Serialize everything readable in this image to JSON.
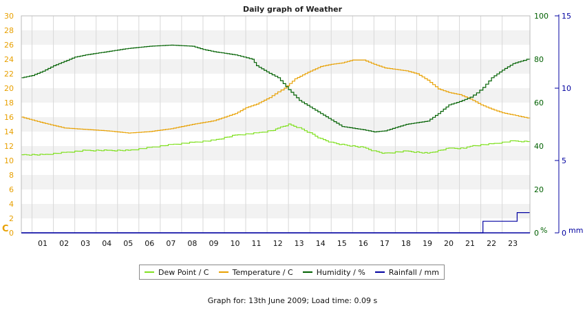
{
  "chart_data": {
    "type": "line",
    "title": "Daily graph of Weather",
    "x_tick_labels": [
      "01",
      "02",
      "03",
      "04",
      "05",
      "06",
      "07",
      "08",
      "09",
      "10",
      "11",
      "12",
      "13",
      "14",
      "15",
      "16",
      "17",
      "18",
      "19",
      "20",
      "21",
      "22",
      "23"
    ],
    "x_range_hours": [
      0,
      23.8
    ],
    "y_left": {
      "label": "C",
      "min": 0,
      "max": 30,
      "ticks": [
        0,
        2,
        4,
        6,
        8,
        10,
        12,
        14,
        16,
        18,
        20,
        22,
        24,
        26,
        28,
        30
      ],
      "color": "#e8a000"
    },
    "y_right_humidity": {
      "label": "%",
      "min": 0,
      "max": 100,
      "ticks": [
        0,
        20,
        40,
        60,
        80,
        100
      ],
      "color": "#006000"
    },
    "y_right_rain": {
      "label": "mm",
      "min": 0,
      "max": 15,
      "ticks": [
        0,
        5,
        10,
        15
      ],
      "color": "#0000a0"
    },
    "grid": true,
    "legend_position": "bottom",
    "series": [
      {
        "name": "Dew Point / C",
        "axis": "left",
        "color": "#80e020",
        "points": [
          [
            0,
            10.8
          ],
          [
            1,
            10.8
          ],
          [
            2,
            11.1
          ],
          [
            3,
            11.4
          ],
          [
            4,
            11.4
          ],
          [
            5,
            11.4
          ],
          [
            6,
            11.8
          ],
          [
            7,
            12.2
          ],
          [
            8,
            12.5
          ],
          [
            9,
            12.8
          ],
          [
            10,
            13.5
          ],
          [
            11,
            13.8
          ],
          [
            11.8,
            14.2
          ],
          [
            12,
            14.5
          ],
          [
            12.5,
            15.0
          ],
          [
            13,
            14.5
          ],
          [
            13.5,
            13.8
          ],
          [
            14,
            13.0
          ],
          [
            14.5,
            12.5
          ],
          [
            15,
            12.2
          ],
          [
            16,
            11.8
          ],
          [
            16.5,
            11.3
          ],
          [
            17,
            11.0
          ],
          [
            18,
            11.3
          ],
          [
            19,
            11.0
          ],
          [
            20,
            11.7
          ],
          [
            20.7,
            11.7
          ],
          [
            21,
            12.0
          ],
          [
            22,
            12.3
          ],
          [
            23,
            12.7
          ],
          [
            23.8,
            12.6
          ]
        ]
      },
      {
        "name": "Temperature / C",
        "axis": "left",
        "color": "#e8a000",
        "points": [
          [
            0,
            16.0
          ],
          [
            1,
            15.2
          ],
          [
            2,
            14.5
          ],
          [
            3,
            14.3
          ],
          [
            4,
            14.1
          ],
          [
            5,
            13.8
          ],
          [
            6,
            14.0
          ],
          [
            7,
            14.4
          ],
          [
            8,
            15.0
          ],
          [
            9,
            15.5
          ],
          [
            10,
            16.5
          ],
          [
            10.5,
            17.3
          ],
          [
            11,
            17.8
          ],
          [
            11.6,
            18.7
          ],
          [
            12,
            19.5
          ],
          [
            12.3,
            20.0
          ],
          [
            12.8,
            21.3
          ],
          [
            13.4,
            22.2
          ],
          [
            14,
            23.0
          ],
          [
            14.5,
            23.3
          ],
          [
            15,
            23.5
          ],
          [
            15.5,
            23.9
          ],
          [
            16,
            23.9
          ],
          [
            16.5,
            23.3
          ],
          [
            17,
            22.8
          ],
          [
            17.5,
            22.6
          ],
          [
            18,
            22.4
          ],
          [
            18.5,
            22.0
          ],
          [
            19,
            21.1
          ],
          [
            19.5,
            19.9
          ],
          [
            20,
            19.4
          ],
          [
            20.5,
            19.1
          ],
          [
            21,
            18.5
          ],
          [
            21.5,
            17.7
          ],
          [
            22,
            17.1
          ],
          [
            22.5,
            16.6
          ],
          [
            23,
            16.3
          ],
          [
            23.8,
            15.8
          ]
        ]
      },
      {
        "name": "Humidity / %",
        "axis": "right_humidity",
        "color": "#006000",
        "points": [
          [
            0,
            71.5
          ],
          [
            0.5,
            72.5
          ],
          [
            1,
            74.5
          ],
          [
            1.5,
            77
          ],
          [
            2,
            79
          ],
          [
            2.5,
            81
          ],
          [
            3,
            82
          ],
          [
            4,
            83.5
          ],
          [
            5,
            85
          ],
          [
            6,
            86
          ],
          [
            7,
            86.5
          ],
          [
            8,
            86
          ],
          [
            8.5,
            84.5
          ],
          [
            9,
            83.5
          ],
          [
            10,
            82
          ],
          [
            10.8,
            80
          ],
          [
            11,
            77
          ],
          [
            11.6,
            73.5
          ],
          [
            12,
            71.5
          ],
          [
            12.5,
            66
          ],
          [
            13,
            61
          ],
          [
            13.5,
            58
          ],
          [
            14,
            55
          ],
          [
            14.5,
            52
          ],
          [
            15,
            49
          ],
          [
            16,
            47.5
          ],
          [
            16.5,
            46.5
          ],
          [
            17,
            47
          ],
          [
            17.5,
            48.5
          ],
          [
            18,
            50
          ],
          [
            19,
            51.5
          ],
          [
            19.5,
            55
          ],
          [
            20,
            59
          ],
          [
            20.5,
            60.5
          ],
          [
            21,
            62.5
          ],
          [
            21.3,
            64.5
          ],
          [
            21.6,
            67
          ],
          [
            22,
            71.5
          ],
          [
            22.5,
            75
          ],
          [
            23,
            78
          ],
          [
            23.5,
            79.5
          ],
          [
            23.8,
            80.5
          ]
        ]
      },
      {
        "name": "Rainfall / mm",
        "axis": "right_rain",
        "color": "#0000a0",
        "points": [
          [
            0,
            0
          ],
          [
            21.6,
            0
          ],
          [
            21.6,
            0.8
          ],
          [
            23.2,
            0.8
          ],
          [
            23.2,
            1.4
          ],
          [
            23.8,
            1.4
          ]
        ]
      }
    ]
  },
  "footer_text": "Graph for: 13th June 2009; Load time: 0.09 s"
}
